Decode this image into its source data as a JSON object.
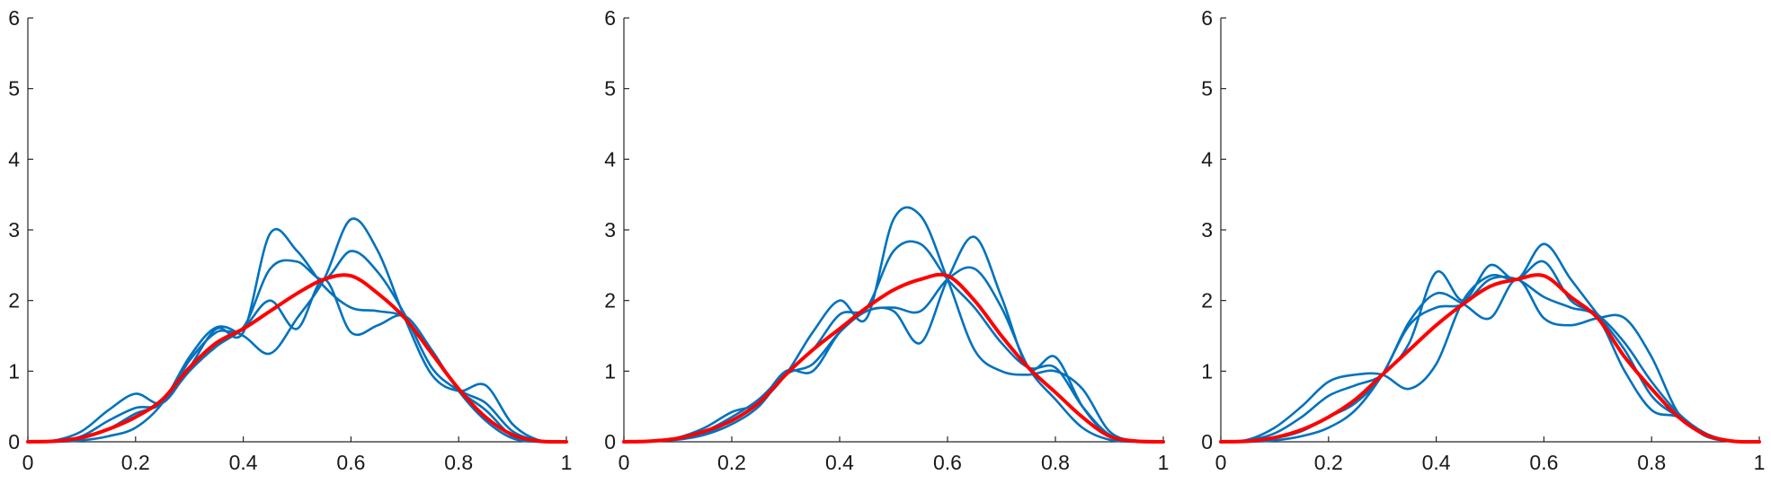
{
  "colors": {
    "series": "#0072BD",
    "mean": "#FF0000",
    "axis": "#262626",
    "background": "#FFFFFF"
  },
  "chart_data": [
    {
      "type": "line",
      "title": "",
      "xlabel": "",
      "ylabel": "",
      "xlim": [
        0,
        1
      ],
      "ylim": [
        0,
        6
      ],
      "xticks": [
        0,
        0.2,
        0.4,
        0.6,
        0.8,
        1
      ],
      "xtick_labels": [
        "0",
        "0.2",
        "0.4",
        "0.6",
        "0.8",
        "1"
      ],
      "yticks": [
        0,
        1,
        2,
        3,
        4,
        5,
        6
      ],
      "ytick_labels": [
        "0",
        "1",
        "2",
        "3",
        "4",
        "5",
        "6"
      ],
      "grid": false,
      "x": [
        0,
        0.05,
        0.1,
        0.15,
        0.2,
        0.25,
        0.3,
        0.35,
        0.4,
        0.45,
        0.5,
        0.55,
        0.6,
        0.65,
        0.7,
        0.75,
        0.8,
        0.85,
        0.9,
        0.95,
        1
      ],
      "series": [
        {
          "values": [
            0,
            0.02,
            0.15,
            0.45,
            0.68,
            0.55,
            1.05,
            1.6,
            1.55,
            2.95,
            2.7,
            2.2,
            1.9,
            1.85,
            1.75,
            1.25,
            0.75,
            0.55,
            0.15,
            0.02,
            0
          ],
          "color": "series"
        },
        {
          "values": [
            0,
            0.01,
            0.08,
            0.3,
            0.48,
            0.55,
            1.15,
            1.55,
            1.62,
            2.45,
            2.55,
            2.3,
            2.7,
            2.4,
            1.8,
            1.05,
            0.72,
            0.45,
            0.08,
            0.01,
            0
          ],
          "color": "series"
        },
        {
          "values": [
            0,
            0,
            0.02,
            0.08,
            0.2,
            0.55,
            1.2,
            1.62,
            1.5,
            1.25,
            1.75,
            2.3,
            3.15,
            2.7,
            1.75,
            0.95,
            0.72,
            0.8,
            0.25,
            0.02,
            0
          ],
          "color": "series"
        },
        {
          "values": [
            0,
            0.01,
            0.05,
            0.18,
            0.4,
            0.55,
            1.0,
            1.35,
            1.6,
            2.0,
            1.6,
            2.3,
            1.55,
            1.65,
            1.78,
            1.3,
            0.72,
            0.3,
            0.05,
            0,
            0
          ],
          "color": "series"
        },
        {
          "values": [
            0,
            0.01,
            0.06,
            0.18,
            0.35,
            0.6,
            1.05,
            1.4,
            1.6,
            1.85,
            2.1,
            2.3,
            2.35,
            2.1,
            1.75,
            1.25,
            0.75,
            0.35,
            0.1,
            0.01,
            0
          ],
          "color": "mean"
        }
      ]
    },
    {
      "type": "line",
      "title": "",
      "xlabel": "",
      "ylabel": "",
      "xlim": [
        0,
        1
      ],
      "ylim": [
        0,
        6
      ],
      "xticks": [
        0,
        0.2,
        0.4,
        0.6,
        0.8,
        1
      ],
      "xtick_labels": [
        "0",
        "0.2",
        "0.4",
        "0.6",
        "0.8",
        "1"
      ],
      "yticks": [
        0,
        1,
        2,
        3,
        4,
        5,
        6
      ],
      "ytick_labels": [
        "0",
        "1",
        "2",
        "3",
        "4",
        "5",
        "6"
      ],
      "grid": false,
      "x": [
        0,
        0.05,
        0.1,
        0.15,
        0.2,
        0.25,
        0.3,
        0.35,
        0.4,
        0.45,
        0.5,
        0.55,
        0.6,
        0.65,
        0.7,
        0.75,
        0.8,
        0.85,
        0.9,
        0.95,
        1
      ],
      "series": [
        {
          "values": [
            0,
            0.01,
            0.06,
            0.2,
            0.42,
            0.55,
            0.95,
            1.55,
            2.0,
            1.75,
            3.15,
            3.2,
            2.3,
            1.3,
            1.0,
            0.95,
            1.0,
            0.75,
            0.15,
            0.01,
            0
          ],
          "color": "series"
        },
        {
          "values": [
            0,
            0.01,
            0.05,
            0.15,
            0.35,
            0.6,
            0.98,
            1.3,
            1.8,
            1.9,
            2.7,
            2.8,
            2.3,
            1.9,
            1.4,
            1.05,
            1.05,
            0.5,
            0.1,
            0.01,
            0
          ],
          "color": "series"
        },
        {
          "values": [
            0,
            0.01,
            0.04,
            0.12,
            0.3,
            0.55,
            1.0,
            1.0,
            1.55,
            1.85,
            1.85,
            1.4,
            2.3,
            2.9,
            2.05,
            1.05,
            1.2,
            0.5,
            0.08,
            0,
            0
          ],
          "color": "series"
        },
        {
          "values": [
            0,
            0.01,
            0.03,
            0.1,
            0.25,
            0.5,
            0.95,
            1.1,
            1.55,
            1.85,
            1.9,
            1.85,
            2.3,
            2.45,
            1.9,
            1.05,
            0.6,
            0.2,
            0.03,
            0,
            0
          ],
          "color": "series"
        },
        {
          "values": [
            0,
            0.01,
            0.05,
            0.15,
            0.3,
            0.55,
            0.95,
            1.3,
            1.6,
            1.9,
            2.15,
            2.3,
            2.35,
            2.0,
            1.5,
            1.05,
            0.7,
            0.35,
            0.08,
            0.01,
            0
          ],
          "color": "mean"
        }
      ]
    },
    {
      "type": "line",
      "title": "",
      "xlabel": "",
      "ylabel": "",
      "xlim": [
        0,
        1
      ],
      "ylim": [
        0,
        6
      ],
      "xticks": [
        0,
        0.2,
        0.4,
        0.6,
        0.8,
        1
      ],
      "xtick_labels": [
        "0",
        "0.2",
        "0.4",
        "0.6",
        "0.8",
        "1"
      ],
      "yticks": [
        0,
        1,
        2,
        3,
        4,
        5,
        6
      ],
      "ytick_labels": [
        "0",
        "1",
        "2",
        "3",
        "4",
        "5",
        "6"
      ],
      "grid": false,
      "x": [
        0,
        0.05,
        0.1,
        0.15,
        0.2,
        0.25,
        0.3,
        0.35,
        0.4,
        0.45,
        0.5,
        0.55,
        0.6,
        0.65,
        0.7,
        0.75,
        0.8,
        0.85,
        0.9,
        0.95,
        1
      ],
      "series": [
        {
          "values": [
            0,
            0.03,
            0.2,
            0.5,
            0.85,
            0.95,
            0.95,
            0.75,
            1.1,
            2.0,
            2.35,
            2.3,
            2.55,
            2.0,
            1.8,
            1.4,
            0.85,
            0.4,
            0.12,
            0.01,
            0
          ],
          "color": "series"
        },
        {
          "values": [
            0,
            0.02,
            0.12,
            0.35,
            0.65,
            0.8,
            0.95,
            1.4,
            2.4,
            2.0,
            2.5,
            2.3,
            2.8,
            2.3,
            1.8,
            1.3,
            0.65,
            0.35,
            0.1,
            0.01,
            0
          ],
          "color": "series"
        },
        {
          "values": [
            0,
            0.01,
            0.05,
            0.15,
            0.35,
            0.55,
            0.95,
            1.7,
            2.1,
            1.95,
            1.75,
            2.3,
            1.75,
            1.65,
            1.75,
            1.75,
            1.2,
            0.4,
            0.1,
            0.01,
            0
          ],
          "color": "series"
        },
        {
          "values": [
            0,
            0,
            0.02,
            0.08,
            0.2,
            0.45,
            0.95,
            1.65,
            1.9,
            1.95,
            2.3,
            2.3,
            2.05,
            1.9,
            1.75,
            1.0,
            0.45,
            0.35,
            0.08,
            0.01,
            0
          ],
          "color": "series"
        },
        {
          "values": [
            0,
            0.01,
            0.06,
            0.17,
            0.35,
            0.6,
            0.95,
            1.3,
            1.65,
            1.95,
            2.2,
            2.3,
            2.35,
            2.05,
            1.75,
            1.2,
            0.75,
            0.35,
            0.1,
            0.01,
            0
          ],
          "color": "mean"
        }
      ]
    }
  ]
}
